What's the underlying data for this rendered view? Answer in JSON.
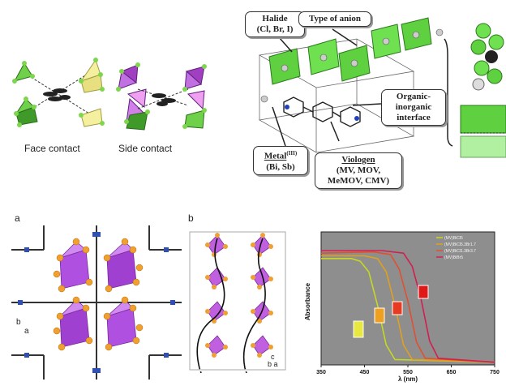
{
  "top_left": {
    "face_contact": "Face contact",
    "side_contact": "Side contact"
  },
  "top_right": {
    "halide": [
      "Halide",
      "(Cl, Br, I)"
    ],
    "anion": "Type of anion",
    "interface": [
      "Organic-",
      "inorganic",
      "interface"
    ],
    "metal": [
      "Metal",
      "(III)",
      "(Bi, Sb)"
    ],
    "viologen": [
      "Viologen",
      "(MV, MOV,",
      "MeMOV, CMV)"
    ]
  },
  "panel_a": {
    "letter": "a",
    "axis_b": "b",
    "axis_a": "a"
  },
  "panel_b": {
    "letter": "b",
    "axis_c": "c",
    "axis_b": "b",
    "axis_a": "a"
  },
  "colors": {
    "green": "#4fc43a",
    "purple": "#b24fd0",
    "orange": "#f0a030",
    "chart_bg": "#8e8e8e"
  },
  "chart_data": {
    "type": "line",
    "title": "",
    "xlabel": "λ (nm)",
    "ylabel": "Absorbance",
    "xlim": [
      350,
      750
    ],
    "x_ticks": [
      "350",
      "450",
      "550",
      "650",
      "750"
    ],
    "legend_position": "top-right",
    "series": [
      {
        "name": "(MV)BiCl5",
        "color": "#c8d820",
        "x": [
          350,
          420,
          440,
          460,
          480,
          500,
          520,
          750
        ],
        "y": [
          0.8,
          0.8,
          0.78,
          0.7,
          0.45,
          0.15,
          0.04,
          0.02
        ]
      },
      {
        "name": "(MV)BiCl5.3Br1.7",
        "color": "#e0a020",
        "x": [
          350,
          450,
          480,
          500,
          520,
          540,
          560,
          750
        ],
        "y": [
          0.82,
          0.82,
          0.8,
          0.7,
          0.45,
          0.15,
          0.04,
          0.02
        ]
      },
      {
        "name": "(MV)BiCl1.3Br3.7",
        "color": "#e05030",
        "x": [
          350,
          470,
          510,
          530,
          550,
          570,
          590,
          750
        ],
        "y": [
          0.84,
          0.85,
          0.83,
          0.72,
          0.48,
          0.17,
          0.05,
          0.02
        ]
      },
      {
        "name": "(MV)BiBr5",
        "color": "#d02050",
        "x": [
          350,
          490,
          540,
          560,
          580,
          600,
          620,
          750
        ],
        "y": [
          0.86,
          0.86,
          0.84,
          0.74,
          0.5,
          0.18,
          0.05,
          0.02
        ]
      }
    ]
  }
}
